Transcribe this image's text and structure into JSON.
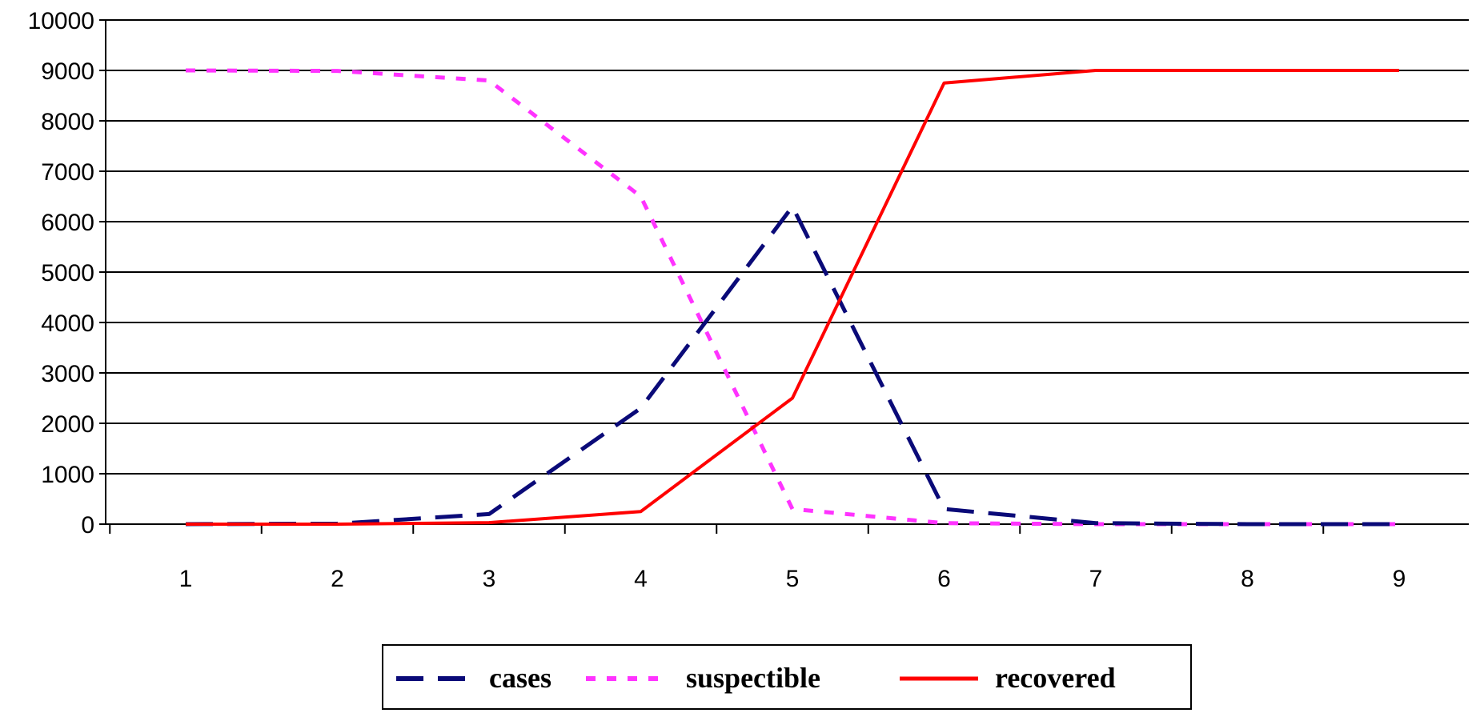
{
  "chart_data": {
    "type": "line",
    "x": [
      1,
      2,
      3,
      4,
      5,
      6,
      7,
      8,
      9
    ],
    "x_tick_labels": [
      "1",
      "2",
      "3",
      "4",
      "5",
      "6",
      "7",
      "8",
      "9"
    ],
    "y_tick_labels": [
      "0",
      "1000",
      "2000",
      "3000",
      "4000",
      "5000",
      "6000",
      "7000",
      "8000",
      "9000",
      "10000"
    ],
    "ylim": [
      0,
      10000
    ],
    "grid": "horizontal",
    "legend_position": "bottom",
    "series": [
      {
        "name": "cases",
        "values": [
          0,
          10,
          200,
          2300,
          6300,
          300,
          20,
          0,
          0
        ],
        "color": "#0a0a78",
        "style": "dashed"
      },
      {
        "name": "suspectible",
        "values": [
          9000,
          8990,
          8800,
          6500,
          300,
          20,
          0,
          0,
          0
        ],
        "color": "#ff33ff",
        "style": "dotted"
      },
      {
        "name": "recovered",
        "values": [
          0,
          0,
          30,
          250,
          2500,
          8750,
          9000,
          9000,
          9000
        ],
        "color": "#ff0000",
        "style": "solid"
      }
    ]
  }
}
